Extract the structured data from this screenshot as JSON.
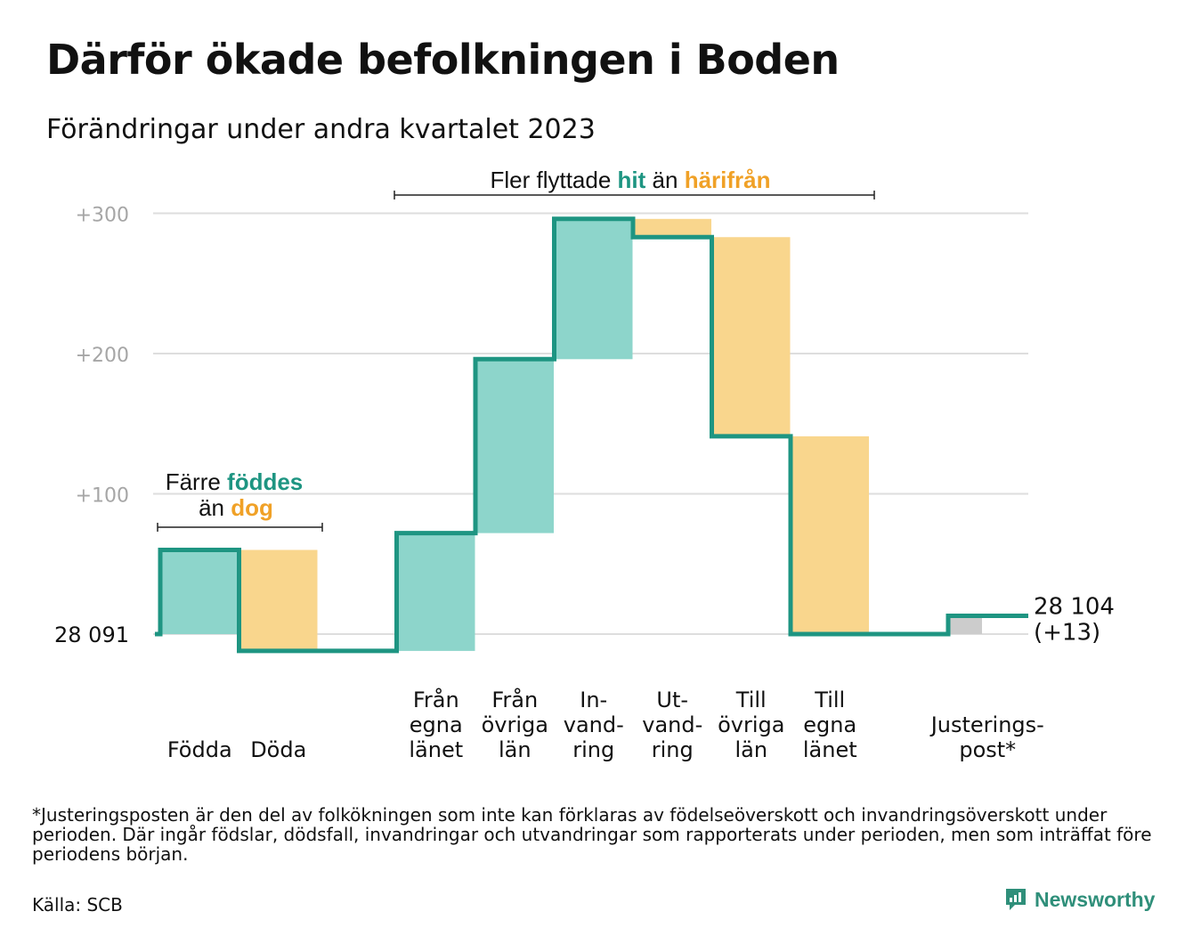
{
  "title": "Därför ökade befolkningen i Boden",
  "subtitle": "Förändringar under andra kvartalet 2023",
  "chart_data": {
    "type": "waterfall",
    "baseline": 28091,
    "baseline_label": "28  091",
    "end_value_label": "28 104",
    "end_change_label": "(+13)",
    "y_ticks": [
      {
        "value": 100,
        "label": "+100"
      },
      {
        "value": 200,
        "label": "+200"
      },
      {
        "value": 300,
        "label": "+300"
      }
    ],
    "ylim": [
      -20,
      300
    ],
    "steps": [
      {
        "label": [
          "Födda"
        ],
        "delta": 60,
        "kind": "in"
      },
      {
        "label": [
          "Döda"
        ],
        "delta": -72,
        "kind": "out"
      },
      {
        "label": [],
        "delta": 0,
        "kind": "gap"
      },
      {
        "label": [
          "Från",
          "egna",
          "länet"
        ],
        "delta": 84,
        "kind": "in"
      },
      {
        "label": [
          "Från",
          "övriga",
          "län"
        ],
        "delta": 124,
        "kind": "in"
      },
      {
        "label": [
          "In-",
          "vand-",
          "ring"
        ],
        "delta": 100,
        "kind": "in"
      },
      {
        "label": [
          "Ut-",
          "vand-",
          "ring"
        ],
        "delta": -13,
        "kind": "out"
      },
      {
        "label": [
          "Till",
          "övriga",
          "län"
        ],
        "delta": -142,
        "kind": "out"
      },
      {
        "label": [
          "Till",
          "egna",
          "länet"
        ],
        "delta": -141,
        "kind": "out"
      },
      {
        "label": [],
        "delta": 0,
        "kind": "gap"
      },
      {
        "label": [
          "Justerings-",
          "post*"
        ],
        "delta": 13,
        "kind": "adjust"
      }
    ],
    "annotations": [
      {
        "parts": [
          {
            "text": "Färre ",
            "style": "plain"
          },
          {
            "text": "föddes",
            "style": "in"
          }
        ],
        "parts2": [
          {
            "text": "än ",
            "style": "plain"
          },
          {
            "text": "dog",
            "style": "out"
          }
        ]
      },
      {
        "parts": [
          {
            "text": "Fler flyttade ",
            "style": "plain"
          },
          {
            "text": "hit",
            "style": "in"
          },
          {
            "text": "  än ",
            "style": "plain"
          },
          {
            "text": "härifrån",
            "style": "out"
          }
        ]
      }
    ],
    "colors": {
      "in_fill": "#8dd5cb",
      "out_fill": "#f9d68d",
      "adjust_fill": "#cccccc",
      "line": "#1e9582",
      "in_text": "#1e9582",
      "out_text": "#f0a127",
      "grid": "#dedede",
      "tick_text": "#a6a6a6"
    }
  },
  "footnote": "*Justeringsposten är den del av folkökningen som inte kan förklaras av födelseöverskott och invandringsöverskott under perioden. Där ingår födslar, dödsfall, invandringar och utvandringar som rapporterats under perioden, men som inträffat före periodens början.",
  "source": "Källa: SCB",
  "brand": {
    "name": "Newsworthy",
    "icon": "newsworthy-logo-icon"
  }
}
